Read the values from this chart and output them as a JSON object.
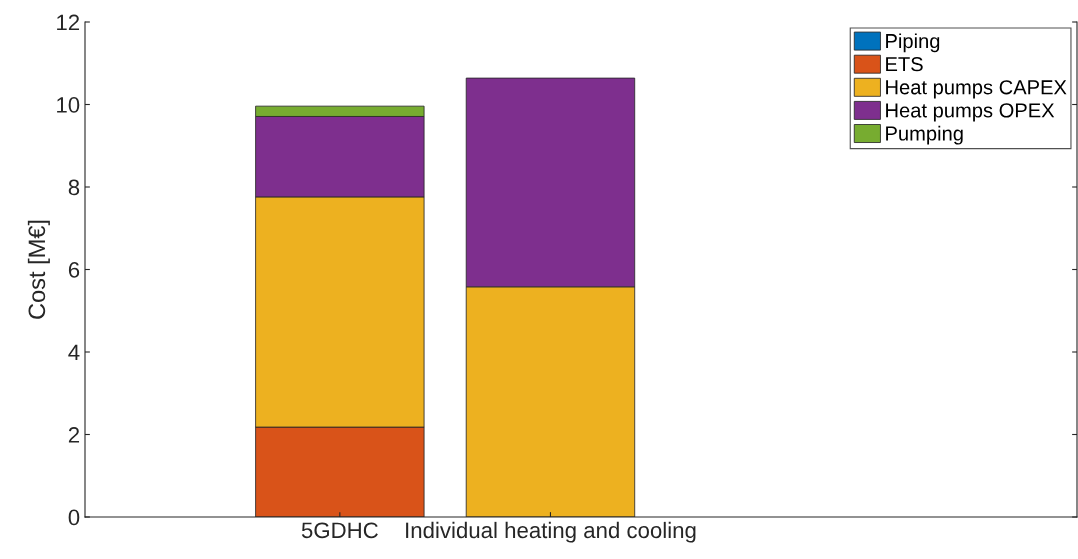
{
  "chart_data": {
    "type": "bar",
    "stacked": true,
    "ylabel": "Cost [M€]",
    "categories": [
      "5GDHC",
      "Individual heating and cooling"
    ],
    "series": [
      {
        "name": "Piping",
        "color": "#0072bd",
        "values": [
          0,
          0
        ]
      },
      {
        "name": "ETS",
        "color": "#d95319",
        "values": [
          2.18,
          0
        ]
      },
      {
        "name": "Heat pumps CAPEX",
        "color": "#edb120",
        "values": [
          5.58,
          5.58
        ]
      },
      {
        "name": "Heat pumps OPEX",
        "color": "#7e2f8e",
        "values": [
          1.95,
          5.06
        ]
      },
      {
        "name": "Pumping",
        "color": "#77ac30",
        "values": [
          0.25,
          0
        ]
      }
    ],
    "ylim": [
      0,
      12
    ],
    "yticks": [
      0,
      2,
      4,
      6,
      8,
      10,
      12
    ],
    "legend": "top right",
    "grid": false
  }
}
